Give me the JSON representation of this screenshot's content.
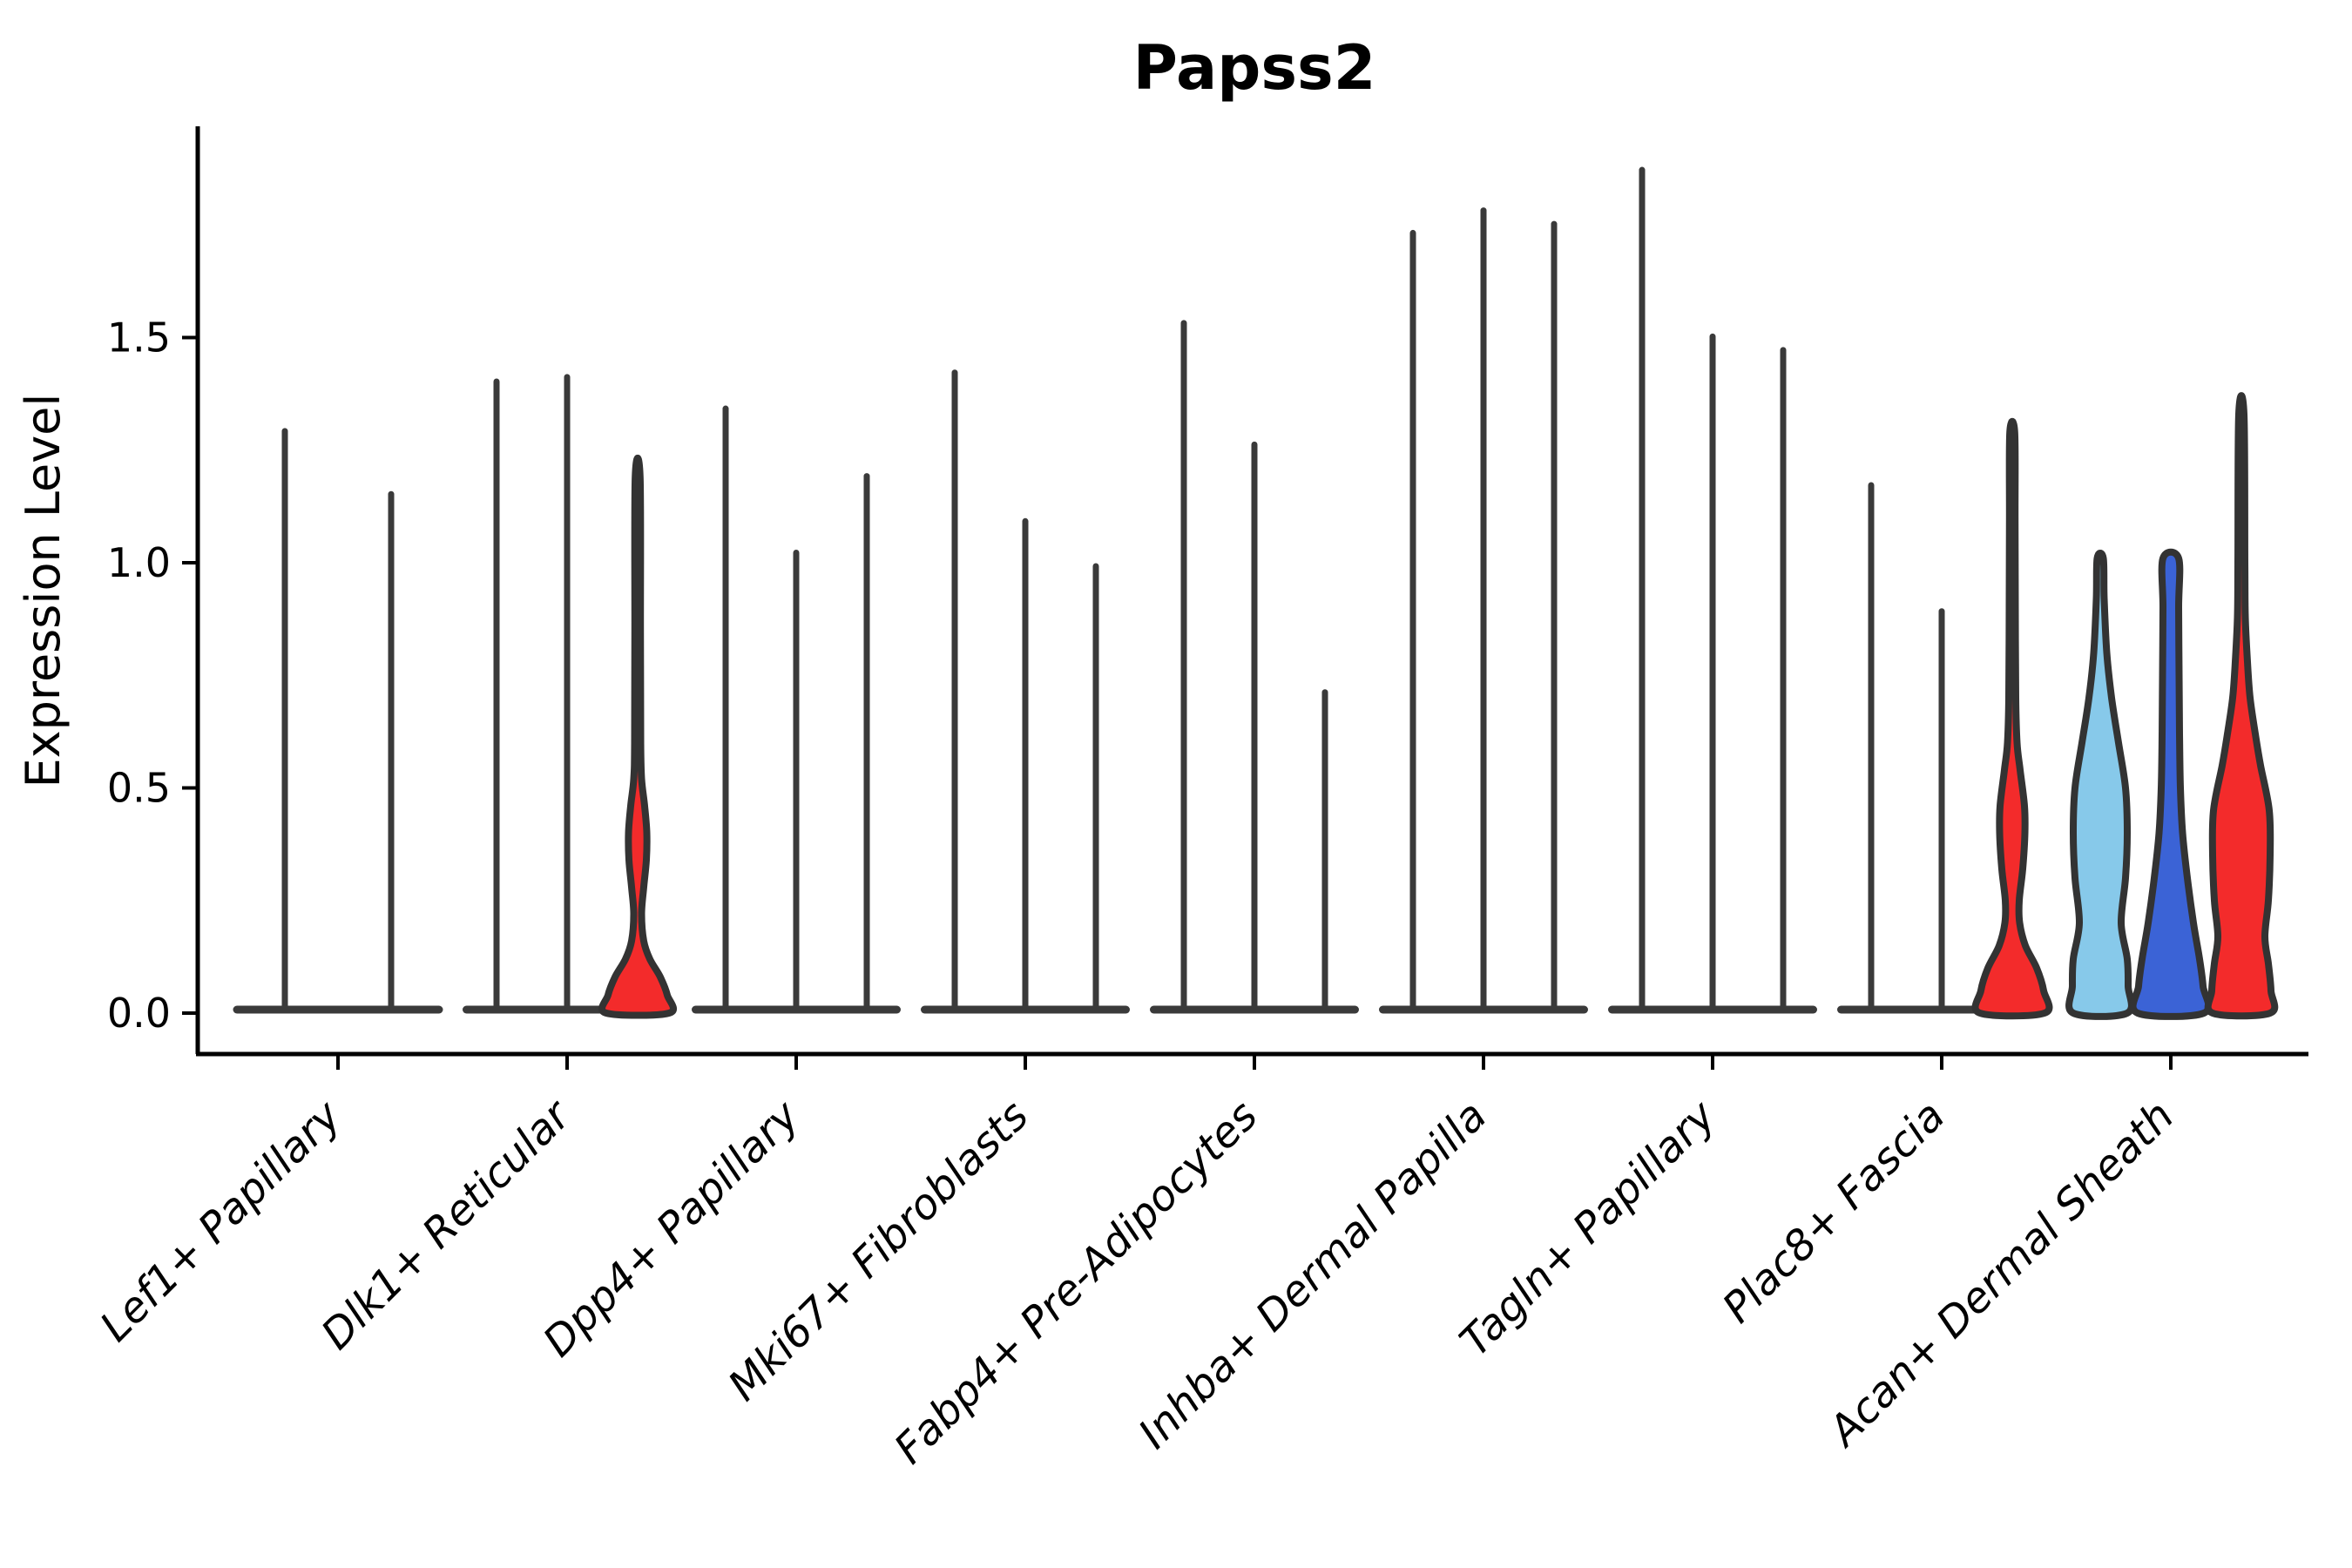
{
  "title": "Papss2",
  "axes": {
    "ylabel": "Expression Level",
    "ytick_labels": [
      "0.0",
      "0.5",
      "1.0",
      "1.5"
    ]
  },
  "colors": {
    "red": "#f32b2b",
    "lightblue": "#87c9ea",
    "royalblue": "#3b63d6",
    "outline": "#333333",
    "spike": "#3a3a3a",
    "axis": "#000000",
    "background": "#ffffff"
  },
  "chart_data": {
    "type": "violin",
    "title": "Papss2",
    "xlabel": "",
    "ylabel": "Expression Level",
    "ylim": [
      0,
      1.97
    ],
    "yticks": [
      0,
      0.5,
      1.0,
      1.5
    ],
    "grid": "off",
    "legend": "none",
    "categories": [
      "Lef1+ Papillary",
      "Dlk1+ Reticular",
      "Dpp4+ Papillary",
      "Mki67+ Fibroblasts",
      "Fabp4+ Pre-Adipocytes",
      "Inhba+ Dermal Papilla",
      "Tagln+ Papillary",
      "Plac8+ Fascia",
      "Acan+ Dermal Sheath"
    ],
    "groups": [
      {
        "category": "Lef1+ Papillary",
        "violins": [
          {
            "kind": "spike",
            "max": 1.3
          },
          {
            "kind": "spike",
            "max": 1.16
          }
        ]
      },
      {
        "category": "Dlk1+ Reticular",
        "violins": [
          {
            "kind": "spike",
            "max": 1.41
          },
          {
            "kind": "spike",
            "max": 1.42
          },
          {
            "kind": "violin",
            "color": "red",
            "max": 1.19,
            "profile": [
              [
                0,
                36
              ],
              [
                0.04,
                34
              ],
              [
                0.08,
                26
              ],
              [
                0.12,
                14
              ],
              [
                0.16,
                7
              ],
              [
                0.22,
                4.5
              ],
              [
                0.28,
                7
              ],
              [
                0.34,
                10
              ],
              [
                0.4,
                10.5
              ],
              [
                0.46,
                8
              ],
              [
                0.52,
                4.5
              ],
              [
                0.6,
                3.5
              ],
              [
                0.85,
                3.2
              ],
              [
                1.19,
                2.8
              ]
            ]
          }
        ]
      },
      {
        "category": "Dpp4+ Papillary",
        "violins": [
          {
            "kind": "spike",
            "max": 1.35
          },
          {
            "kind": "spike",
            "max": 1.03
          },
          {
            "kind": "spike",
            "max": 1.2
          }
        ]
      },
      {
        "category": "Mki67+ Fibroblasts",
        "violins": [
          {
            "kind": "spike",
            "max": 1.43
          },
          {
            "kind": "spike",
            "max": 1.1
          },
          {
            "kind": "spike",
            "max": 1.0
          }
        ]
      },
      {
        "category": "Fabp4+ Pre-Adipocytes",
        "violins": [
          {
            "kind": "spike",
            "max": 1.54
          },
          {
            "kind": "spike",
            "max": 1.27
          },
          {
            "kind": "spike",
            "max": 0.72
          }
        ]
      },
      {
        "category": "Inhba+ Dermal Papilla",
        "violins": [
          {
            "kind": "spike",
            "max": 1.74
          },
          {
            "kind": "spike",
            "max": 1.79
          },
          {
            "kind": "spike",
            "max": 1.76
          }
        ]
      },
      {
        "category": "Tagln+ Papillary",
        "violins": [
          {
            "kind": "spike",
            "max": 1.88
          },
          {
            "kind": "spike",
            "max": 1.51
          },
          {
            "kind": "spike",
            "max": 1.48
          }
        ]
      },
      {
        "category": "Plac8+ Fascia",
        "violins": [
          {
            "kind": "spike",
            "max": 1.18
          },
          {
            "kind": "spike",
            "max": 0.9
          },
          {
            "kind": "violin",
            "color": "red",
            "max": 1.29,
            "profile": [
              [
                0,
                37
              ],
              [
                0.05,
                36
              ],
              [
                0.1,
                28
              ],
              [
                0.15,
                15
              ],
              [
                0.2,
                8.5
              ],
              [
                0.25,
                8
              ],
              [
                0.32,
                12
              ],
              [
                0.4,
                14.5
              ],
              [
                0.46,
                14
              ],
              [
                0.54,
                9
              ],
              [
                0.6,
                5.5
              ],
              [
                0.7,
                4
              ],
              [
                0.9,
                3.5
              ],
              [
                1.1,
                3.2
              ],
              [
                1.29,
                2.8
              ]
            ]
          }
        ]
      },
      {
        "category": "Acan+ Dermal Sheath",
        "violins": [
          {
            "kind": "violin",
            "color": "lightblue",
            "max": 1.01,
            "profile": [
              [
                0,
                31
              ],
              [
                0.06,
                32
              ],
              [
                0.12,
                31
              ],
              [
                0.2,
                24
              ],
              [
                0.3,
                29
              ],
              [
                0.4,
                31
              ],
              [
                0.5,
                29
              ],
              [
                0.6,
                21
              ],
              [
                0.7,
                13
              ],
              [
                0.8,
                7.5
              ],
              [
                0.92,
                4.5
              ],
              [
                1.01,
                3.5
              ]
            ]
          },
          {
            "kind": "violin",
            "color": "royalblue",
            "max": 1.01,
            "profile": [
              [
                0,
                38
              ],
              [
                0.06,
                37
              ],
              [
                0.12,
                33
              ],
              [
                0.2,
                26
              ],
              [
                0.3,
                19
              ],
              [
                0.4,
                13.5
              ],
              [
                0.5,
                11
              ],
              [
                0.62,
                10
              ],
              [
                0.75,
                9.5
              ],
              [
                0.9,
                9
              ],
              [
                1.01,
                9
              ]
            ]
          },
          {
            "kind": "violin",
            "color": "red",
            "max": 1.33,
            "profile": [
              [
                0,
                33
              ],
              [
                0.05,
                34
              ],
              [
                0.11,
                31
              ],
              [
                0.17,
                27
              ],
              [
                0.25,
                31
              ],
              [
                0.35,
                33
              ],
              [
                0.45,
                32
              ],
              [
                0.55,
                22
              ],
              [
                0.62,
                16
              ],
              [
                0.7,
                10
              ],
              [
                0.78,
                7
              ],
              [
                0.88,
                4.5
              ],
              [
                1.0,
                4
              ],
              [
                1.33,
                3
              ]
            ]
          }
        ]
      }
    ]
  }
}
